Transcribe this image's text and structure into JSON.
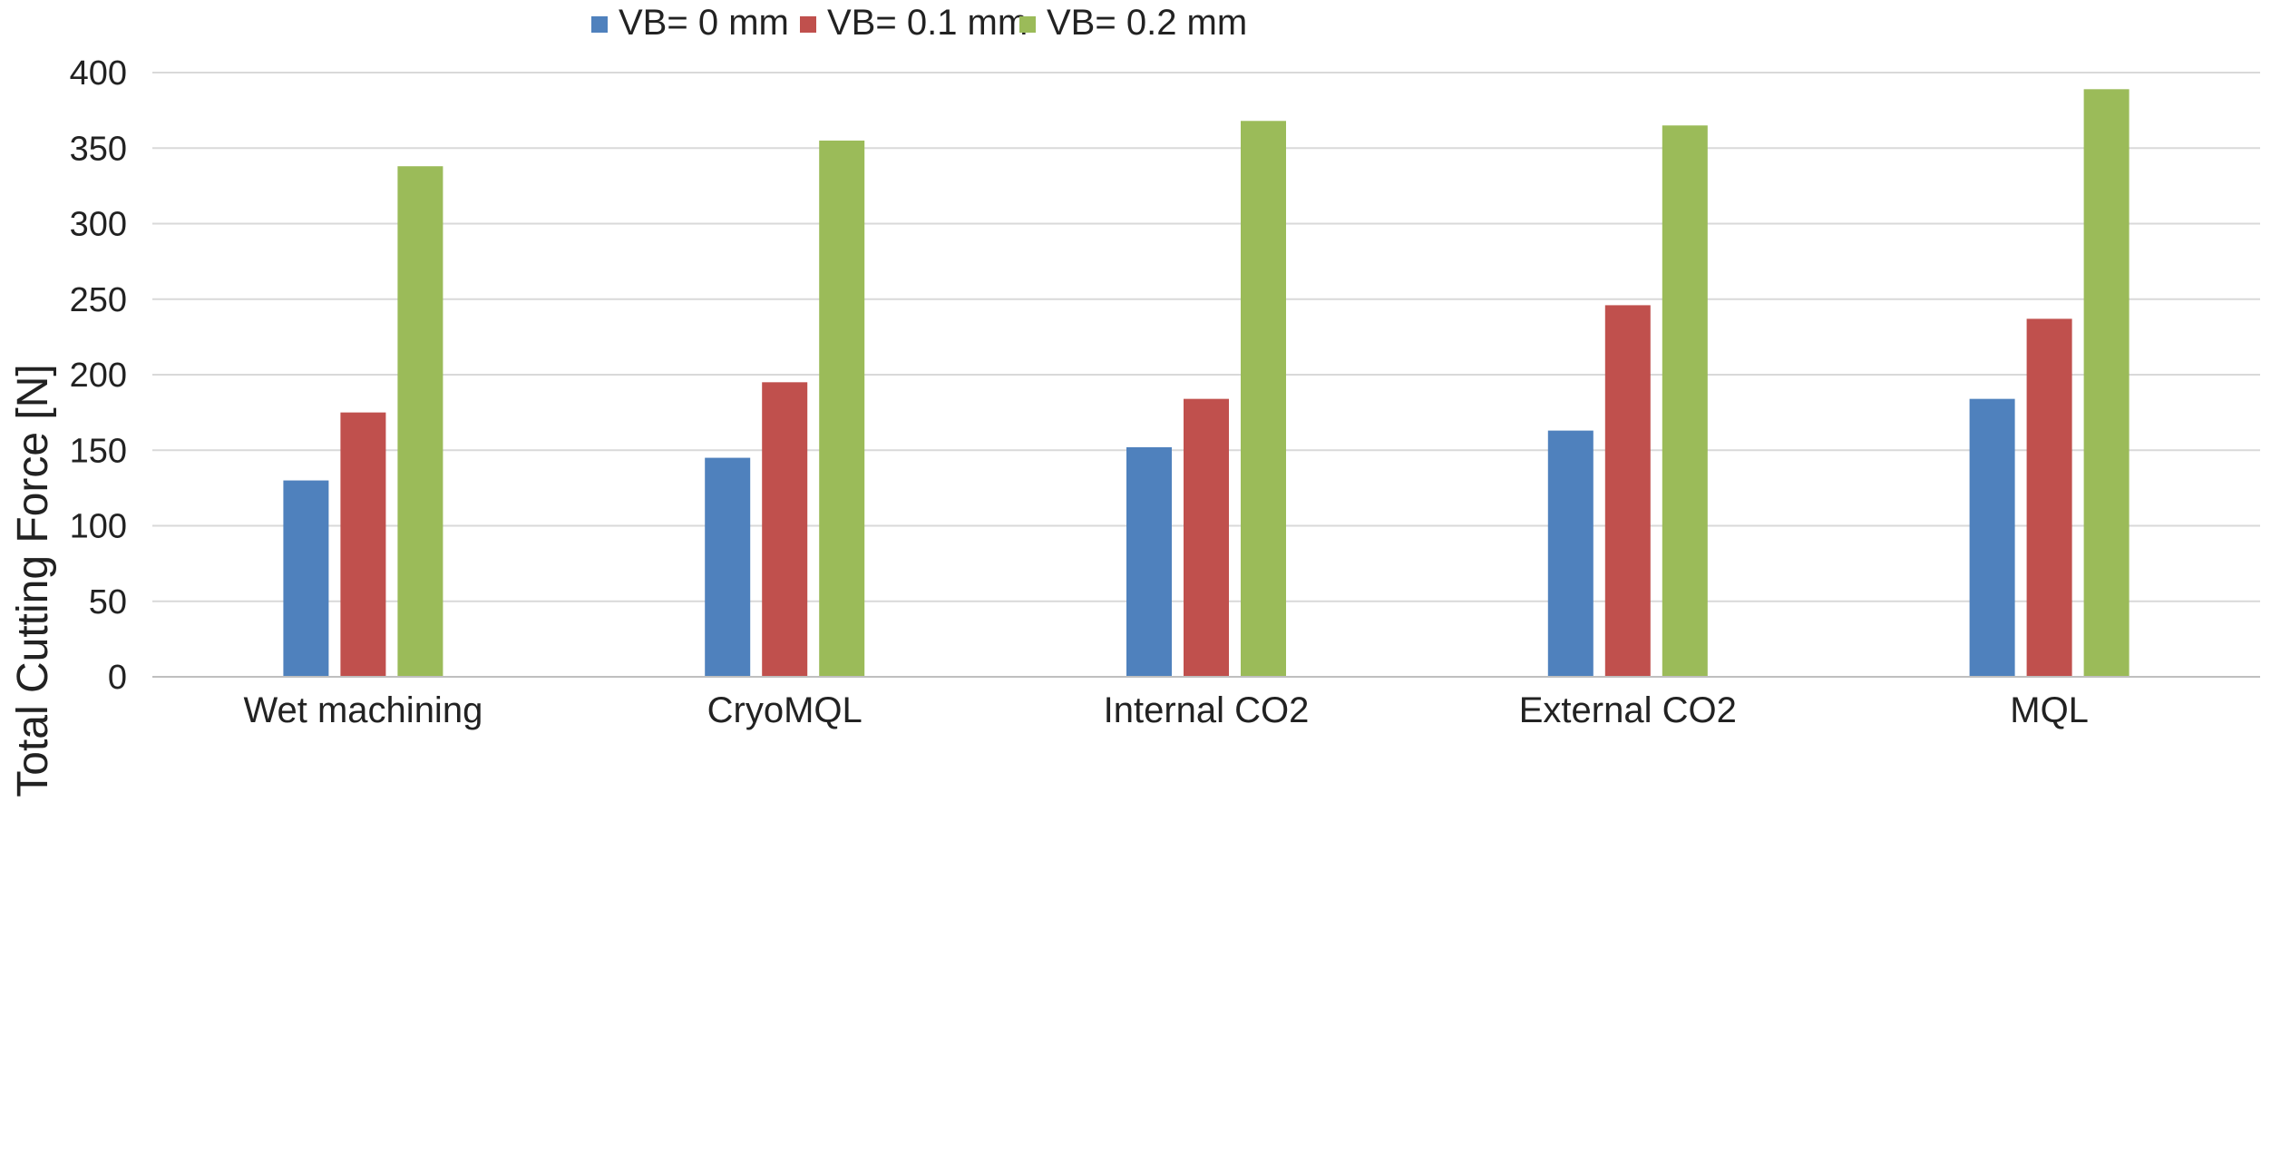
{
  "chart_data": {
    "type": "bar",
    "title": "",
    "xlabel": "",
    "ylabel": "Total Cutting Force [N]",
    "ylim": [
      0,
      400
    ],
    "yticks": [
      0,
      50,
      100,
      150,
      200,
      250,
      300,
      350,
      400
    ],
    "grid": true,
    "legend_position": "top",
    "categories": [
      "Wet machining",
      "CryoMQL",
      "Internal CO2",
      "External CO2",
      "MQL"
    ],
    "series": [
      {
        "name": "VB= 0 mm",
        "color": "#4f81bd",
        "values": [
          130,
          145,
          152,
          163,
          184
        ]
      },
      {
        "name": "VB= 0.1 mm",
        "color": "#c0504d",
        "values": [
          175,
          195,
          184,
          246,
          237
        ]
      },
      {
        "name": "VB= 0.2 mm",
        "color": "#9bbb59",
        "values": [
          338,
          355,
          368,
          365,
          389
        ]
      }
    ]
  }
}
